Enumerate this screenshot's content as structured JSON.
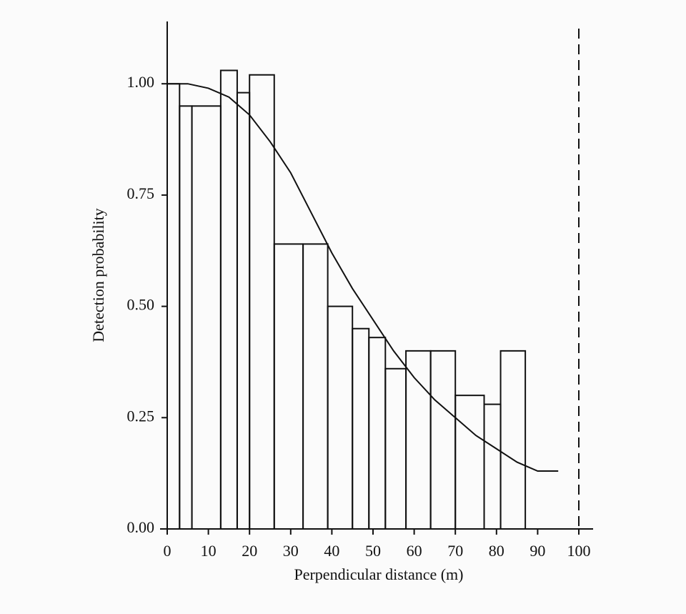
{
  "chart_data": {
    "type": "histogram",
    "x_label": "Perpendicular distance (m)",
    "y_label": "Detection probability",
    "bins": [
      0,
      3,
      6,
      13,
      17,
      20,
      26,
      33,
      39,
      45,
      49,
      53,
      58,
      64,
      70,
      77,
      81,
      87
    ],
    "values": [
      1.0,
      0.95,
      0.95,
      1.03,
      0.98,
      1.02,
      0.64,
      0.64,
      0.5,
      0.45,
      0.43,
      0.36,
      0.4,
      0.4,
      0.3,
      0.28,
      0.4
    ],
    "color": "#111111",
    "curve": {
      "x": [
        0,
        5,
        10,
        15,
        20,
        25,
        30,
        35,
        40,
        45,
        50,
        55,
        60,
        65,
        70,
        75,
        80,
        85,
        90,
        95
      ],
      "values": [
        1.0,
        1.0,
        0.99,
        0.97,
        0.93,
        0.87,
        0.8,
        0.71,
        0.62,
        0.54,
        0.47,
        0.4,
        0.34,
        0.29,
        0.25,
        0.21,
        0.18,
        0.15,
        0.13,
        0.13
      ]
    },
    "cutoff_x": 100,
    "xlim": [
      0,
      100
    ],
    "ylim": [
      0,
      1.14
    ],
    "xticks": [
      0,
      10,
      20,
      30,
      40,
      50,
      60,
      70,
      80,
      90,
      100
    ],
    "yticks": [
      {
        "value": 0,
        "label": "0.00"
      },
      {
        "value": 0.25,
        "label": "0.25"
      },
      {
        "value": 0.5,
        "label": "0.50"
      },
      {
        "value": 0.75,
        "label": "0.75"
      },
      {
        "value": 1,
        "label": "1.00"
      }
    ]
  }
}
